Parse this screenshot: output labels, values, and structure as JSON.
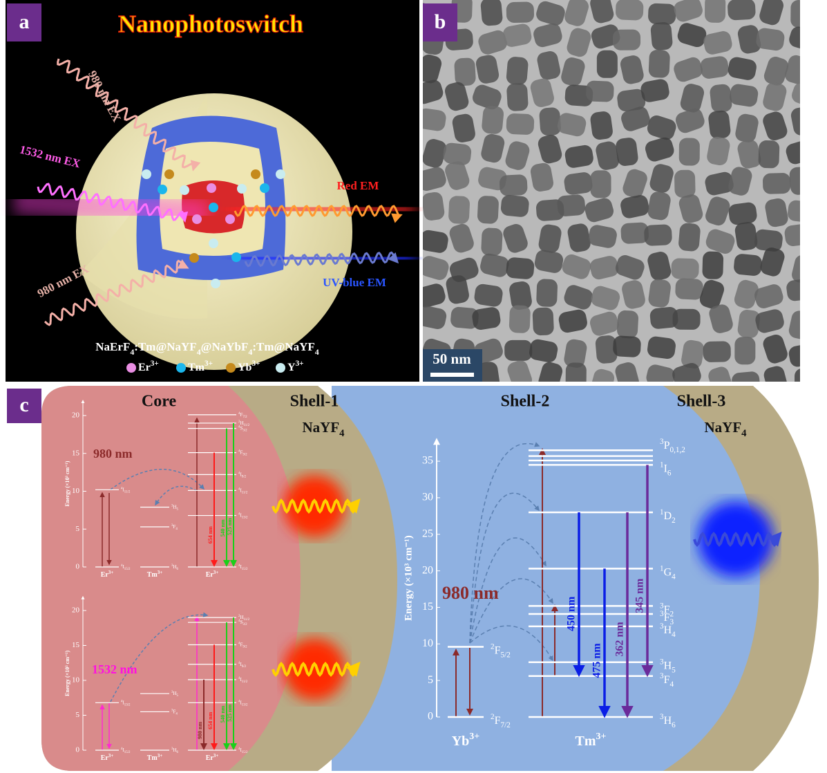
{
  "panel_a": {
    "label": "a",
    "title": "Nanophotoswitch",
    "excitation": [
      "980 nm EX",
      "1532 nm EX",
      "980 nm EX"
    ],
    "emission": [
      "Red EM",
      "UV-blue EM"
    ],
    "formula": "NaErF4:Tm@NaYF4@NaYbF4:Tm@NaYF4",
    "ions": [
      {
        "name": "Er3+",
        "color": "#e98ee3"
      },
      {
        "name": "Tm3+",
        "color": "#1bb6ec"
      },
      {
        "name": "Yb3+",
        "color": "#c58a1c"
      },
      {
        "name": "Y3+",
        "color": "#c9ecf0"
      }
    ]
  },
  "panel_b": {
    "label": "b",
    "scale_bar": "50 nm"
  },
  "panel_c": {
    "label": "c",
    "regions": [
      "Core",
      "Shell-1",
      "Shell-2",
      "Shell-3"
    ],
    "shell_materials": [
      "NaYF4",
      "NaYF4"
    ],
    "small_diagrams": [
      {
        "axis_label": "Energy (×10³ cm⁻¹)",
        "ylim": [
          0,
          22
        ],
        "yticks": [
          0,
          5,
          10,
          15,
          20
        ],
        "excitation": "980 nm",
        "ions": [
          {
            "name": "Er3+",
            "levels": [
              {
                "label": "4I15/2",
                "energy": 0
              },
              {
                "label": "4I11/2",
                "energy": 10.2
              }
            ]
          },
          {
            "name": "Tm3+",
            "levels": [
              {
                "label": "3H6",
                "energy": 0
              },
              {
                "label": "3F4",
                "energy": 5.3
              },
              {
                "label": "3H5",
                "energy": 7.9
              }
            ]
          },
          {
            "name": "Er3+",
            "levels": [
              {
                "label": "4I15/2",
                "energy": 0
              },
              {
                "label": "4I13/2",
                "energy": 6.8
              },
              {
                "label": "4I11/2",
                "energy": 10.1
              },
              {
                "label": "4I9/2",
                "energy": 12.2
              },
              {
                "label": "4F9/2",
                "energy": 15.1
              },
              {
                "label": "4S3/2",
                "energy": 18.3
              },
              {
                "label": "2H11/2",
                "energy": 19
              },
              {
                "label": "4F7/2",
                "energy": 20.1
              }
            ]
          }
        ],
        "emissions": [
          {
            "label": "654 nm",
            "from": 15.1,
            "to": 0,
            "color": "#ff1a1a"
          },
          {
            "label": "540 nm",
            "from": 18.3,
            "to": 0,
            "color": "#19d019"
          },
          {
            "label": "525 nm",
            "from": 19,
            "to": 0,
            "color": "#19d019"
          }
        ]
      },
      {
        "axis_label": "Energy (×10³ cm⁻¹)",
        "ylim": [
          0,
          22
        ],
        "yticks": [
          0,
          5,
          10,
          15,
          20
        ],
        "excitation": "1532 nm",
        "ions": [
          {
            "name": "Er3+",
            "levels": [
              {
                "label": "4I15/2",
                "energy": 0
              },
              {
                "label": "4I13/2",
                "energy": 6.8
              }
            ]
          },
          {
            "name": "Tm3+",
            "levels": [
              {
                "label": "3H6",
                "energy": 0
              },
              {
                "label": "3F4",
                "energy": 5.5
              },
              {
                "label": "3H5",
                "energy": 8.1
              }
            ]
          },
          {
            "name": "Er3+",
            "levels": [
              {
                "label": "4I15/2",
                "energy": 0
              },
              {
                "label": "4I13/2",
                "energy": 6.8
              },
              {
                "label": "4I11/2",
                "energy": 10.1
              },
              {
                "label": "4I9/2",
                "energy": 12.3
              },
              {
                "label": "4F9/2",
                "energy": 15.1
              },
              {
                "label": "4S3/2",
                "energy": 18.3
              },
              {
                "label": "2H11/2",
                "energy": 19
              }
            ]
          }
        ],
        "emissions": [
          {
            "label": "980 nm",
            "from": 10.1,
            "to": 0,
            "color": "#8b2a2a"
          },
          {
            "label": "654 nm",
            "from": 15.1,
            "to": 0,
            "color": "#ff1a1a"
          },
          {
            "label": "540 nm",
            "from": 18.3,
            "to": 0,
            "color": "#19d019"
          },
          {
            "label": "525 nm",
            "from": 19,
            "to": 0,
            "color": "#19d019"
          }
        ]
      }
    ],
    "big_diagram": {
      "axis_label": "Energy (×10³ cm⁻¹)",
      "ylim": [
        0,
        38
      ],
      "yticks": [
        0,
        5,
        10,
        15,
        20,
        25,
        30,
        35
      ],
      "excitation": "980 nm",
      "ions": [
        {
          "name": "Yb3+",
          "levels": [
            {
              "label": "2F7/2",
              "energy": 0
            },
            {
              "label": "2F5/2",
              "energy": 9.6
            }
          ]
        },
        {
          "name": "Tm3+",
          "levels": [
            {
              "label": "3H6",
              "energy": 0
            },
            {
              "label": "3F4",
              "energy": 5.6
            },
            {
              "label": "3H5",
              "energy": 7.5
            },
            {
              "label": "3H4",
              "energy": 12.4
            },
            {
              "label": "3F3",
              "energy": 14.1
            },
            {
              "label": "3F2",
              "energy": 15.2
            },
            {
              "label": "1G4",
              "energy": 20.3
            },
            {
              "label": "1D2",
              "energy": 28
            },
            {
              "label": "1I6",
              "energy": 34.5
            },
            {
              "label": null,
              "energy": 35.1
            },
            {
              "label": null,
              "energy": 35.7
            },
            {
              "label": "3P0,1,2",
              "energy": 36.5
            }
          ]
        }
      ],
      "emissions": [
        {
          "label": "450 nm",
          "from": 28,
          "to": 5.6,
          "color": "#0a1ee6"
        },
        {
          "label": "475 nm",
          "from": 20.3,
          "to": 0,
          "color": "#0a1ee6"
        },
        {
          "label": "362 nm",
          "from": 28,
          "to": 0,
          "color": "#6a2a9a"
        },
        {
          "label": "345 nm",
          "from": 34.5,
          "to": 5.6,
          "color": "#6a2a9a"
        }
      ]
    }
  }
}
